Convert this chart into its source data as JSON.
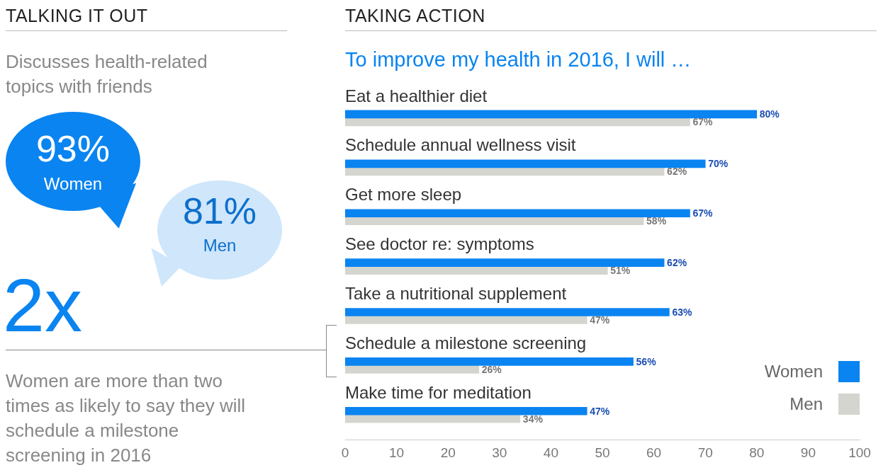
{
  "chart_data": [
    {
      "type": "other",
      "title": "TALKING IT OUT",
      "annotations": [
        "Discusses health-related topics with friends",
        "93%",
        "Women",
        "81%",
        "Men",
        "2x",
        "Women are more than two times as likely to say they will schedule a milestone screening in 2016"
      ]
    },
    {
      "type": "bar",
      "orientation": "horizontal",
      "title": "TAKING ACTION",
      "subtitle": "To improve my health in 2016, I will …",
      "categories": [
        "Eat a healthier diet",
        "Schedule annual wellness visit",
        "Get more sleep",
        "See doctor re: symptoms",
        "Take a nutritional supplement",
        "Schedule a milestone screening",
        "Make time for meditation"
      ],
      "series": [
        {
          "name": "Women",
          "color": "#0a84f0",
          "values": [
            80,
            70,
            67,
            62,
            63,
            56,
            47
          ],
          "value_labels": [
            "80%",
            "70%",
            "67%",
            "62%",
            "63%",
            "56%",
            "47%"
          ]
        },
        {
          "name": "Men",
          "color": "#d5d5cf",
          "values": [
            67,
            62,
            58,
            51,
            47,
            26,
            34
          ],
          "value_labels": [
            "67%",
            "62%",
            "58%",
            "51%",
            "47%",
            "26%",
            "34%"
          ]
        }
      ],
      "xlim": [
        0,
        100
      ],
      "xticks": [
        0,
        10,
        20,
        30,
        40,
        50,
        60,
        70,
        80,
        90,
        100
      ],
      "grid": false,
      "legend": "bottom right"
    }
  ]
}
